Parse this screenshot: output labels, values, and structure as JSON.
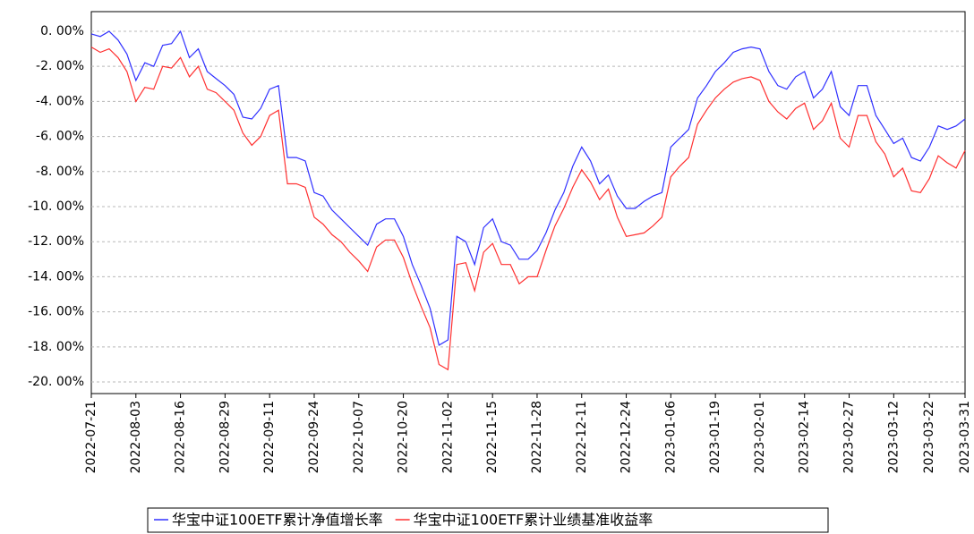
{
  "chart_data": {
    "type": "line",
    "categories": [
      "2022-07-21",
      null,
      null,
      null,
      null,
      "2022-08-03",
      null,
      null,
      null,
      null,
      "2022-08-16",
      null,
      null,
      null,
      null,
      "2022-08-29",
      null,
      null,
      null,
      null,
      "2022-09-11",
      null,
      null,
      null,
      null,
      "2022-09-24",
      null,
      null,
      null,
      null,
      "2022-10-07",
      null,
      null,
      null,
      null,
      "2022-10-20",
      null,
      null,
      null,
      null,
      "2022-11-02",
      null,
      null,
      null,
      null,
      "2022-11-15",
      null,
      null,
      null,
      null,
      "2022-11-28",
      null,
      null,
      null,
      null,
      "2022-12-11",
      null,
      null,
      null,
      null,
      "2022-12-24",
      null,
      null,
      null,
      null,
      "2023-01-06",
      null,
      null,
      null,
      null,
      "2023-01-19",
      null,
      null,
      null,
      null,
      "2023-02-01",
      null,
      null,
      null,
      null,
      "2023-02-14",
      null,
      null,
      null,
      null,
      "2023-02-27",
      null,
      null,
      null,
      null,
      "2023-03-12",
      null,
      null,
      null,
      "2023-03-22",
      null,
      null,
      null,
      "2023-03-31"
    ],
    "series": [
      {
        "name": "华宝中证100ETF累计净值增长率",
        "color": "#3030ff",
        "values": [
          -0.15,
          -0.3,
          0.0,
          -0.5,
          -1.3,
          -2.8,
          -1.8,
          -2.0,
          -0.8,
          -0.7,
          0.0,
          -1.5,
          -1.0,
          -2.3,
          -2.7,
          -3.1,
          -3.6,
          -4.9,
          -5.0,
          -4.4,
          -3.3,
          -3.1,
          -7.2,
          -7.2,
          -7.4,
          -9.2,
          -9.4,
          -10.2,
          -10.7,
          -11.2,
          -11.7,
          -12.2,
          -11.0,
          -10.7,
          -10.7,
          -11.7,
          -13.3,
          -14.5,
          -15.8,
          -17.9,
          -17.6,
          -11.7,
          -12.0,
          -13.3,
          -11.2,
          -10.7,
          -12.0,
          -12.2,
          -13.0,
          -13.0,
          -12.5,
          -11.5,
          -10.2,
          -9.2,
          -7.7,
          -6.6,
          -7.4,
          -8.7,
          -8.2,
          -9.4,
          -10.1,
          -10.1,
          -9.7,
          -9.4,
          -9.2,
          -6.6,
          -6.1,
          -5.6,
          -3.8,
          -3.1,
          -2.3,
          -1.8,
          -1.2,
          -1.0,
          -0.9,
          -1.0,
          -2.3,
          -3.1,
          -3.3,
          -2.6,
          -2.3,
          -3.8,
          -3.3,
          -2.3,
          -4.3,
          -4.8,
          -3.1,
          -3.1,
          -4.8,
          -5.6,
          -6.4,
          -6.1,
          -7.2,
          -7.4,
          -6.6,
          -5.4,
          -5.6,
          -5.4,
          -5.0
        ]
      },
      {
        "name": "华宝中证100ETF累计业绩基准收益率",
        "color": "#ff3030",
        "values": [
          -0.9,
          -1.2,
          -1.0,
          -1.5,
          -2.3,
          -4.0,
          -3.2,
          -3.3,
          -2.0,
          -2.1,
          -1.5,
          -2.6,
          -2.0,
          -3.3,
          -3.5,
          -4.0,
          -4.5,
          -5.8,
          -6.5,
          -6.0,
          -4.8,
          -4.5,
          -8.7,
          -8.7,
          -8.9,
          -10.6,
          -11.0,
          -11.6,
          -12.0,
          -12.6,
          -13.1,
          -13.7,
          -12.3,
          -11.9,
          -11.9,
          -12.9,
          -14.4,
          -15.7,
          -16.9,
          -19.0,
          -19.3,
          -13.3,
          -13.2,
          -14.8,
          -12.6,
          -12.1,
          -13.3,
          -13.3,
          -14.4,
          -14.0,
          -14.0,
          -12.5,
          -11.1,
          -10.1,
          -8.9,
          -7.9,
          -8.6,
          -9.6,
          -9.0,
          -10.6,
          -11.7,
          -11.6,
          -11.5,
          -11.1,
          -10.6,
          -8.3,
          -7.7,
          -7.2,
          -5.3,
          -4.5,
          -3.8,
          -3.3,
          -2.9,
          -2.7,
          -2.6,
          -2.8,
          -4.0,
          -4.6,
          -5.0,
          -4.4,
          -4.1,
          -5.6,
          -5.1,
          -4.1,
          -6.1,
          -6.6,
          -4.8,
          -4.8,
          -6.3,
          -7.0,
          -8.3,
          -7.8,
          -9.1,
          -9.2,
          -8.4,
          -7.1,
          -7.5,
          -7.8,
          -6.8
        ]
      }
    ],
    "ylim": [
      -20.66,
      1.12
    ],
    "yticks": [
      {
        "value": 0,
        "label": "0. 00%"
      },
      {
        "value": -2,
        "label": "-2. 00%"
      },
      {
        "value": -4,
        "label": "-4. 00%"
      },
      {
        "value": -6,
        "label": "-6. 00%"
      },
      {
        "value": -8,
        "label": "-8. 00%"
      },
      {
        "value": -10,
        "label": "-10. 00%"
      },
      {
        "value": -12,
        "label": "-12. 00%"
      },
      {
        "value": -14,
        "label": "-14. 00%"
      },
      {
        "value": -16,
        "label": "-16. 00%"
      },
      {
        "value": -18,
        "label": "-18. 00%"
      },
      {
        "value": -20,
        "label": "-20. 00%"
      }
    ],
    "grid": true
  }
}
